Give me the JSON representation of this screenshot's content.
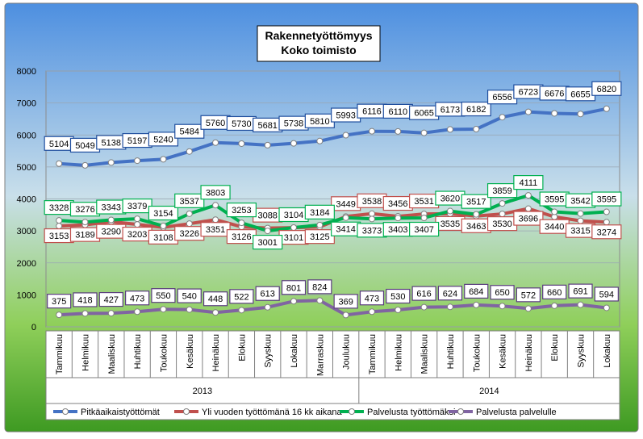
{
  "chart_data": {
    "type": "line",
    "title": "Rakennetyöttömyys",
    "subtitle": "Koko toimisto",
    "categories": [
      "Tammikuu",
      "Helmikuu",
      "Maaliskuu",
      "Huhtikuu",
      "Toukokuu",
      "Kesäkuu",
      "Heinäkuu",
      "Elokuu",
      "Syyskuu",
      "Lokakuu",
      "Marraskuu",
      "Joulukuu",
      "Tammikuu",
      "Helmikuu",
      "Maaliskuu",
      "Huhtikuu",
      "Toukokuu",
      "Kesäkuu",
      "Heinäkuu",
      "Elokuu",
      "Syyskuu",
      "Lokakuu"
    ],
    "years": [
      {
        "label": "2013",
        "start": 0,
        "end": 11
      },
      {
        "label": "2014",
        "start": 12,
        "end": 21
      }
    ],
    "ylim": [
      0,
      8000
    ],
    "yticks": [
      0,
      1000,
      2000,
      3000,
      4000,
      5000,
      6000,
      7000,
      8000
    ],
    "grid": true,
    "legend_position": "bottom",
    "series": [
      {
        "name": "Pitkäaikaistyöttömät",
        "color": "#4472c4",
        "label_position": "above",
        "values": [
          5104,
          5049,
          5138,
          5197,
          5240,
          5484,
          5760,
          5730,
          5681,
          5738,
          5810,
          5993,
          6116,
          6110,
          6065,
          6173,
          6182,
          6556,
          6723,
          6676,
          6655,
          6820
        ]
      },
      {
        "name": "Yli vuoden työttömänä 16 kk aikana",
        "color": "#c0504d",
        "label_position": "below",
        "values": [
          3153,
          3189,
          3290,
          3203,
          3108,
          3226,
          3351,
          3126,
          3088,
          3101,
          3125,
          3449,
          3538,
          3456,
          3531,
          3535,
          3463,
          3530,
          3696,
          3440,
          3315,
          3274
        ]
      },
      {
        "name": "Palvelusta työttömäksi",
        "color": "#00b050",
        "label_position": "mixed",
        "values": [
          3328,
          3276,
          3343,
          3379,
          3154,
          3537,
          3803,
          3253,
          3001,
          3104,
          3184,
          3414,
          3373,
          3403,
          3407,
          3620,
          3517,
          3859,
          4111,
          3595,
          3542,
          3595
        ]
      },
      {
        "name": "Palvelusta palvelulle",
        "color": "#8064a2",
        "label_position": "above",
        "values": [
          375,
          418,
          427,
          473,
          550,
          540,
          448,
          522,
          613,
          801,
          824,
          369,
          473,
          530,
          616,
          624,
          684,
          650,
          572,
          660,
          691,
          594
        ]
      }
    ]
  }
}
